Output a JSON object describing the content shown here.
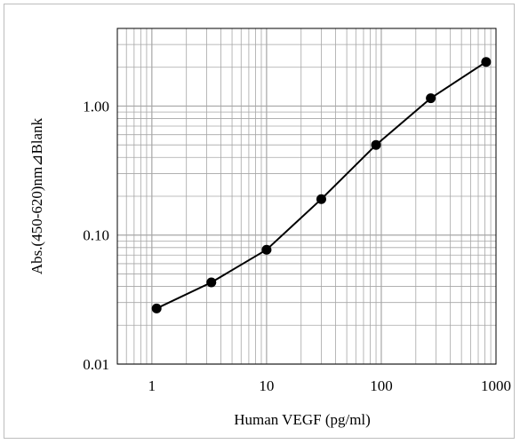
{
  "chart_data": {
    "type": "line",
    "xlabel": "Human VEGF (pg/ml)",
    "ylabel": "Abs.(450-620)nm⊿Blank",
    "xscale": "log",
    "yscale": "log",
    "xlim": [
      0.5,
      1000
    ],
    "ylim": [
      0.01,
      4
    ],
    "x_ticks": [
      "1",
      "10",
      "100",
      "1000"
    ],
    "y_ticks": [
      "0.01",
      "0.10",
      "1.00"
    ],
    "grid": true,
    "series": [
      {
        "x": [
          1.1,
          3.3,
          10,
          30,
          90,
          270,
          820
        ],
        "y": [
          0.027,
          0.043,
          0.077,
          0.19,
          0.5,
          1.15,
          2.2
        ]
      }
    ],
    "colors": {
      "line": "#000000",
      "grid": "#a6a6a6",
      "frame": "#bdbdbd"
    }
  }
}
